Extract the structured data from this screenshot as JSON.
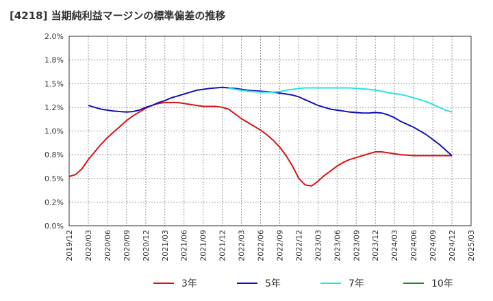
{
  "chart_data": {
    "type": "line",
    "title": "[4218]  当期純利益マージンの標準偏差の推移",
    "xlabel": "",
    "ylabel": "",
    "ylim": [
      0,
      2.0
    ],
    "y_ticks": [
      "0.0%",
      "0.2%",
      "0.5%",
      "0.8%",
      "1.0%",
      "1.2%",
      "1.5%",
      "1.8%",
      "2.0%"
    ],
    "x_ticks": [
      "2019/12",
      "2020/03",
      "2020/06",
      "2020/09",
      "2020/12",
      "2021/03",
      "2021/06",
      "2021/09",
      "2021/12",
      "2022/03",
      "2022/06",
      "2022/09",
      "2022/12",
      "2023/03",
      "2023/06",
      "2023/09",
      "2023/12",
      "2024/03",
      "2024/06",
      "2024/09",
      "2024/12",
      "2025/03"
    ],
    "grid": true,
    "legend_position": "bottom",
    "series": [
      {
        "name": "3年",
        "color": "#dd1111",
        "points": [
          [
            "2019/12",
            0.52
          ],
          [
            "2020/01",
            0.54
          ],
          [
            "2020/02",
            0.6
          ],
          [
            "2020/03",
            0.7
          ],
          [
            "2020/04",
            0.78
          ],
          [
            "2020/05",
            0.86
          ],
          [
            "2020/06",
            0.93
          ],
          [
            "2020/07",
            0.99
          ],
          [
            "2020/08",
            1.05
          ],
          [
            "2020/09",
            1.11
          ],
          [
            "2020/10",
            1.16
          ],
          [
            "2020/11",
            1.2
          ],
          [
            "2020/12",
            1.24
          ],
          [
            "2021/01",
            1.27
          ],
          [
            "2021/02",
            1.29
          ],
          [
            "2021/03",
            1.3
          ],
          [
            "2021/04",
            1.3
          ],
          [
            "2021/05",
            1.3
          ],
          [
            "2021/06",
            1.29
          ],
          [
            "2021/07",
            1.28
          ],
          [
            "2021/08",
            1.27
          ],
          [
            "2021/09",
            1.26
          ],
          [
            "2021/10",
            1.26
          ],
          [
            "2021/11",
            1.26
          ],
          [
            "2021/12",
            1.25
          ],
          [
            "2022/01",
            1.23
          ],
          [
            "2022/02",
            1.18
          ],
          [
            "2022/03",
            1.13
          ],
          [
            "2022/04",
            1.09
          ],
          [
            "2022/05",
            1.05
          ],
          [
            "2022/06",
            1.01
          ],
          [
            "2022/07",
            0.96
          ],
          [
            "2022/08",
            0.9
          ],
          [
            "2022/09",
            0.83
          ],
          [
            "2022/10",
            0.74
          ],
          [
            "2022/11",
            0.63
          ],
          [
            "2022/12",
            0.5
          ],
          [
            "2023/01",
            0.43
          ],
          [
            "2023/02",
            0.42
          ],
          [
            "2023/03",
            0.47
          ],
          [
            "2023/04",
            0.53
          ],
          [
            "2023/05",
            0.58
          ],
          [
            "2023/06",
            0.63
          ],
          [
            "2023/07",
            0.67
          ],
          [
            "2023/08",
            0.7
          ],
          [
            "2023/09",
            0.72
          ],
          [
            "2023/10",
            0.74
          ],
          [
            "2023/11",
            0.76
          ],
          [
            "2023/12",
            0.78
          ],
          [
            "2024/01",
            0.78
          ],
          [
            "2024/02",
            0.77
          ],
          [
            "2024/03",
            0.76
          ],
          [
            "2024/04",
            0.75
          ],
          [
            "2024/05",
            0.745
          ],
          [
            "2024/06",
            0.74
          ],
          [
            "2024/07",
            0.74
          ],
          [
            "2024/08",
            0.74
          ],
          [
            "2024/09",
            0.74
          ],
          [
            "2024/10",
            0.74
          ],
          [
            "2024/11",
            0.74
          ],
          [
            "2024/12",
            0.74
          ]
        ]
      },
      {
        "name": "5年",
        "color": "#1111bb",
        "points": [
          [
            "2020/03",
            1.27
          ],
          [
            "2020/04",
            1.25
          ],
          [
            "2020/05",
            1.23
          ],
          [
            "2020/06",
            1.22
          ],
          [
            "2020/07",
            1.21
          ],
          [
            "2020/08",
            1.205
          ],
          [
            "2020/09",
            1.2
          ],
          [
            "2020/10",
            1.205
          ],
          [
            "2020/11",
            1.22
          ],
          [
            "2020/12",
            1.25
          ],
          [
            "2021/01",
            1.27
          ],
          [
            "2021/02",
            1.3
          ],
          [
            "2021/03",
            1.32
          ],
          [
            "2021/04",
            1.35
          ],
          [
            "2021/05",
            1.37
          ],
          [
            "2021/06",
            1.39
          ],
          [
            "2021/07",
            1.41
          ],
          [
            "2021/08",
            1.43
          ],
          [
            "2021/09",
            1.44
          ],
          [
            "2021/10",
            1.45
          ],
          [
            "2021/11",
            1.455
          ],
          [
            "2021/12",
            1.46
          ],
          [
            "2022/01",
            1.455
          ],
          [
            "2022/02",
            1.45
          ],
          [
            "2022/03",
            1.44
          ],
          [
            "2022/04",
            1.43
          ],
          [
            "2022/05",
            1.425
          ],
          [
            "2022/06",
            1.42
          ],
          [
            "2022/07",
            1.415
          ],
          [
            "2022/08",
            1.41
          ],
          [
            "2022/09",
            1.4
          ],
          [
            "2022/10",
            1.39
          ],
          [
            "2022/11",
            1.38
          ],
          [
            "2022/12",
            1.36
          ],
          [
            "2023/01",
            1.33
          ],
          [
            "2023/02",
            1.3
          ],
          [
            "2023/03",
            1.27
          ],
          [
            "2023/04",
            1.25
          ],
          [
            "2023/05",
            1.23
          ],
          [
            "2023/06",
            1.22
          ],
          [
            "2023/07",
            1.21
          ],
          [
            "2023/08",
            1.2
          ],
          [
            "2023/09",
            1.195
          ],
          [
            "2023/10",
            1.19
          ],
          [
            "2023/11",
            1.19
          ],
          [
            "2023/12",
            1.195
          ],
          [
            "2024/01",
            1.19
          ],
          [
            "2024/02",
            1.17
          ],
          [
            "2024/03",
            1.14
          ],
          [
            "2024/04",
            1.1
          ],
          [
            "2024/05",
            1.07
          ],
          [
            "2024/06",
            1.04
          ],
          [
            "2024/07",
            1.0
          ],
          [
            "2024/08",
            0.96
          ],
          [
            "2024/09",
            0.91
          ],
          [
            "2024/10",
            0.86
          ],
          [
            "2024/11",
            0.8
          ],
          [
            "2024/12",
            0.74
          ]
        ]
      },
      {
        "name": "7年",
        "color": "#22e5e5",
        "points": [
          [
            "2022/01",
            1.455
          ],
          [
            "2022/02",
            1.44
          ],
          [
            "2022/03",
            1.43
          ],
          [
            "2022/04",
            1.42
          ],
          [
            "2022/05",
            1.415
          ],
          [
            "2022/06",
            1.41
          ],
          [
            "2022/07",
            1.41
          ],
          [
            "2022/08",
            1.41
          ],
          [
            "2022/09",
            1.415
          ],
          [
            "2022/10",
            1.43
          ],
          [
            "2022/11",
            1.44
          ],
          [
            "2022/12",
            1.45
          ],
          [
            "2023/01",
            1.455
          ],
          [
            "2023/02",
            1.455
          ],
          [
            "2023/03",
            1.455
          ],
          [
            "2023/04",
            1.455
          ],
          [
            "2023/05",
            1.455
          ],
          [
            "2023/06",
            1.455
          ],
          [
            "2023/07",
            1.455
          ],
          [
            "2023/08",
            1.455
          ],
          [
            "2023/09",
            1.45
          ],
          [
            "2023/10",
            1.445
          ],
          [
            "2023/11",
            1.44
          ],
          [
            "2023/12",
            1.43
          ],
          [
            "2024/01",
            1.42
          ],
          [
            "2024/02",
            1.405
          ],
          [
            "2024/03",
            1.395
          ],
          [
            "2024/04",
            1.385
          ],
          [
            "2024/05",
            1.37
          ],
          [
            "2024/06",
            1.35
          ],
          [
            "2024/07",
            1.33
          ],
          [
            "2024/08",
            1.31
          ],
          [
            "2024/09",
            1.28
          ],
          [
            "2024/10",
            1.25
          ],
          [
            "2024/11",
            1.22
          ],
          [
            "2024/12",
            1.2
          ]
        ]
      },
      {
        "name": "10年",
        "color": "#228822",
        "points": []
      }
    ]
  }
}
